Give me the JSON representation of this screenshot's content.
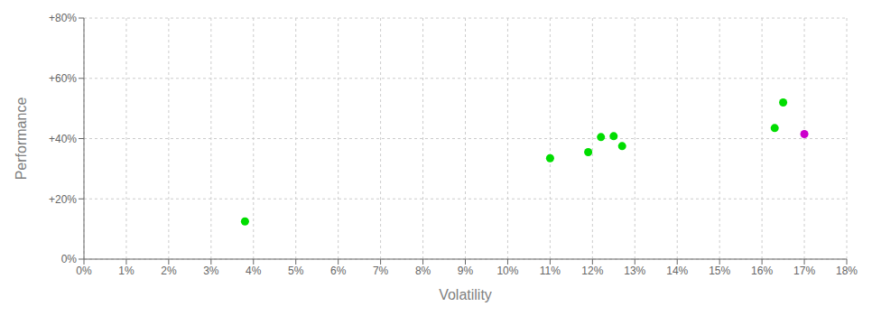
{
  "chart_data": {
    "type": "scatter",
    "xlabel": "Volatility",
    "ylabel": "Performance",
    "xlim": [
      0,
      0.18
    ],
    "ylim": [
      0,
      0.8
    ],
    "xticks": [
      {
        "value": 0.0,
        "label": "0%"
      },
      {
        "value": 0.01,
        "label": "1%"
      },
      {
        "value": 0.02,
        "label": "2%"
      },
      {
        "value": 0.03,
        "label": "3%"
      },
      {
        "value": 0.04,
        "label": "4%"
      },
      {
        "value": 0.05,
        "label": "5%"
      },
      {
        "value": 0.06,
        "label": "6%"
      },
      {
        "value": 0.07,
        "label": "7%"
      },
      {
        "value": 0.08,
        "label": "8%"
      },
      {
        "value": 0.09,
        "label": "9%"
      },
      {
        "value": 0.1,
        "label": "10%"
      },
      {
        "value": 0.11,
        "label": "11%"
      },
      {
        "value": 0.12,
        "label": "12%"
      },
      {
        "value": 0.13,
        "label": "13%"
      },
      {
        "value": 0.14,
        "label": "14%"
      },
      {
        "value": 0.15,
        "label": "15%"
      },
      {
        "value": 0.16,
        "label": "16%"
      },
      {
        "value": 0.17,
        "label": "17%"
      },
      {
        "value": 0.18,
        "label": "18%"
      }
    ],
    "yticks": [
      {
        "value": 0.0,
        "label": "0%"
      },
      {
        "value": 0.2,
        "label": "+20%"
      },
      {
        "value": 0.4,
        "label": "+40%"
      },
      {
        "value": 0.6,
        "label": "+60%"
      },
      {
        "value": 0.8,
        "label": "+80%"
      }
    ],
    "grid": true,
    "series": [
      {
        "color": "#00dd00",
        "x": [
          0.038,
          0.11,
          0.119,
          0.122,
          0.125,
          0.127,
          0.163,
          0.165
        ],
        "values": [
          0.125,
          0.335,
          0.355,
          0.405,
          0.408,
          0.375,
          0.435,
          0.52
        ]
      },
      {
        "color": "#cc00cc",
        "x": [
          0.17
        ],
        "values": [
          0.415
        ]
      }
    ]
  }
}
